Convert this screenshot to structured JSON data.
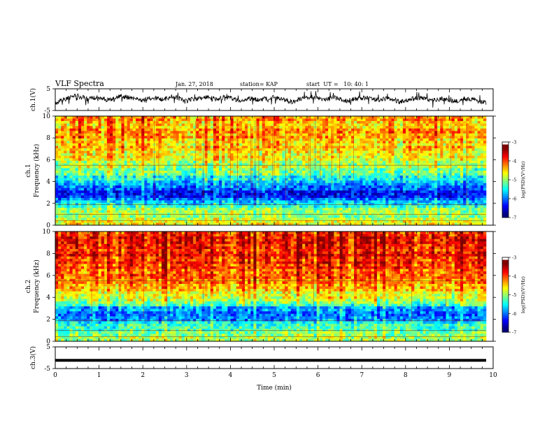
{
  "header": {
    "title": "VLF Spectra",
    "date": "Jan. 27, 2018",
    "station": "station= KAP",
    "start": "start  UT =   10: 40: 1"
  },
  "colors": {
    "low": "#00008b",
    "mid": "#00ff00",
    "high": "#ff0000",
    "trace": "#000000"
  },
  "chart_data": [
    {
      "type": "line",
      "panel": "ch1-waveform",
      "ylabel": "ch.1(V)",
      "ylim": [
        -5,
        5
      ],
      "yticks": [
        "5",
        "-5"
      ],
      "xlim": [
        0,
        10
      ],
      "series": [
        {
          "values": [
            -1.5,
            0.5,
            1.8,
            0.3,
            1.2,
            -0.4,
            1.5,
            0.8,
            -0.3,
            1.0,
            0.2,
            1.6,
            -0.8,
            0.5,
            1.2,
            0.0,
            1.4,
            -0.5,
            0.8,
            -0.2,
            1.1,
            0.3,
            -1.0,
            0.6,
            1.3,
            0.1,
            0.9,
            -0.6,
            0.4,
            1.0,
            -0.2,
            0.7,
            -1.2,
            0.2,
            0.9,
            -0.4,
            0.5,
            -0.9,
            0.3,
            -0.1,
            -1.5
          ]
        }
      ]
    },
    {
      "type": "heatmap",
      "panel": "ch1-spectrogram",
      "ylabel": "ch.1 Frequency (kHz)",
      "xlim": [
        0,
        10
      ],
      "ylim": [
        0,
        10
      ],
      "yticks": [
        "0",
        "2",
        "4",
        "6",
        "8",
        "10"
      ],
      "colorbar": {
        "label": "log(PSD)(V²/Hz)",
        "range": [
          -7,
          -3
        ],
        "ticks": [
          "-3",
          "-4",
          "-5",
          "-6",
          "-7"
        ]
      },
      "data_end_min": 9.84,
      "profile": [
        {
          "f": 0.0,
          "v": -4.6
        },
        {
          "f": 0.6,
          "v": -4.9
        },
        {
          "f": 1.0,
          "v": -4.8
        },
        {
          "f": 1.4,
          "v": -5.0
        },
        {
          "f": 1.8,
          "v": -5.3
        },
        {
          "f": 2.1,
          "v": -5.7
        },
        {
          "f": 2.6,
          "v": -6.2
        },
        {
          "f": 3.0,
          "v": -6.5
        },
        {
          "f": 3.4,
          "v": -6.1
        },
        {
          "f": 3.9,
          "v": -5.8
        },
        {
          "f": 4.5,
          "v": -5.4
        },
        {
          "f": 5.2,
          "v": -5.0
        },
        {
          "f": 6.0,
          "v": -4.7
        },
        {
          "f": 7.0,
          "v": -4.4
        },
        {
          "f": 8.0,
          "v": -4.2
        },
        {
          "f": 9.0,
          "v": -4.2
        },
        {
          "f": 10.0,
          "v": -4.3
        }
      ]
    },
    {
      "type": "heatmap",
      "panel": "ch2-spectrogram",
      "ylabel": "ch.2 Frequency (kHz)",
      "xlim": [
        0,
        10
      ],
      "ylim": [
        0,
        10
      ],
      "yticks": [
        "0",
        "2",
        "4",
        "6",
        "8",
        "10"
      ],
      "colorbar": {
        "label": "log(PSD)(V²/Hz)",
        "range": [
          -7,
          -3
        ],
        "ticks": [
          "-3",
          "-4",
          "-5",
          "-6",
          "-7"
        ]
      },
      "data_end_min": 9.84,
      "profile": [
        {
          "f": 0.0,
          "v": -4.8
        },
        {
          "f": 0.5,
          "v": -5.0
        },
        {
          "f": 1.0,
          "v": -5.1
        },
        {
          "f": 1.5,
          "v": -5.3
        },
        {
          "f": 2.0,
          "v": -5.9
        },
        {
          "f": 2.5,
          "v": -6.2
        },
        {
          "f": 3.0,
          "v": -5.9
        },
        {
          "f": 3.5,
          "v": -5.1
        },
        {
          "f": 4.0,
          "v": -4.6
        },
        {
          "f": 5.0,
          "v": -4.2
        },
        {
          "f": 6.0,
          "v": -3.9
        },
        {
          "f": 7.0,
          "v": -3.7
        },
        {
          "f": 8.0,
          "v": -3.6
        },
        {
          "f": 9.0,
          "v": -3.6
        },
        {
          "f": 10.0,
          "v": -3.7
        }
      ]
    },
    {
      "type": "line",
      "panel": "ch3-waveform",
      "ylabel": "ch.3(V)",
      "ylim": [
        -5,
        5
      ],
      "yticks": [
        "5",
        "-5"
      ],
      "xlim": [
        0,
        10
      ],
      "xlabel": "Time (min)",
      "xticks": [
        "0",
        "1",
        "2",
        "3",
        "4",
        "5",
        "6",
        "7",
        "8",
        "9",
        "10"
      ],
      "series": [
        {
          "values": [
            -1.2,
            -1.2
          ]
        }
      ]
    }
  ]
}
